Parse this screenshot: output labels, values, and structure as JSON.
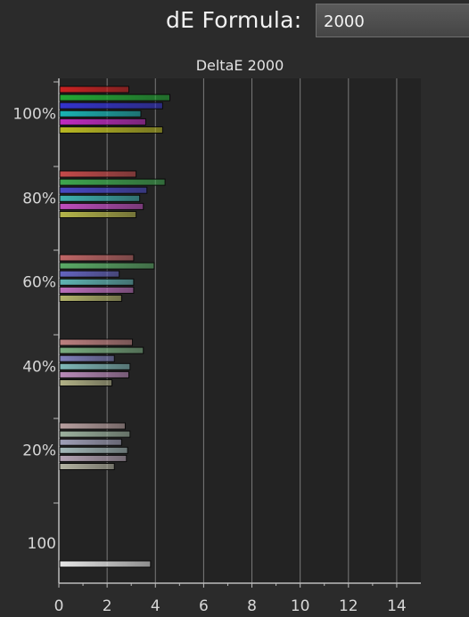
{
  "header": {
    "formula_label": "dE Formula:",
    "formula_value": "2000"
  },
  "colors": {
    "background": "#2b2b2b",
    "plot_background": "#232323",
    "grid": "#7a7a7a",
    "axis": "#bdbdbd"
  },
  "chart_data": {
    "type": "bar",
    "orientation": "horizontal",
    "title": "DeltaE 2000",
    "xlabel": "",
    "ylabel": "",
    "xlim": [
      0,
      15
    ],
    "x_ticks": [
      0,
      2,
      4,
      6,
      8,
      10,
      12,
      14
    ],
    "grid": true,
    "groups": [
      {
        "label": "100%",
        "bars": [
          {
            "name": "red",
            "value": 2.9,
            "color": "#cc2222"
          },
          {
            "name": "green",
            "value": 4.6,
            "color": "#22a833"
          },
          {
            "name": "blue",
            "value": 4.3,
            "color": "#3333cc"
          },
          {
            "name": "cyan",
            "value": 3.4,
            "color": "#19b3b3"
          },
          {
            "name": "magenta",
            "value": 3.6,
            "color": "#c02ac0"
          },
          {
            "name": "yellow",
            "value": 4.3,
            "color": "#b8b822"
          }
        ]
      },
      {
        "label": "80%",
        "bars": [
          {
            "name": "red",
            "value": 3.2,
            "color": "#c44a4a"
          },
          {
            "name": "green",
            "value": 4.4,
            "color": "#3ea64e"
          },
          {
            "name": "blue",
            "value": 3.65,
            "color": "#4848c4"
          },
          {
            "name": "cyan",
            "value": 3.35,
            "color": "#3db0b0"
          },
          {
            "name": "magenta",
            "value": 3.5,
            "color": "#bd4dbd"
          },
          {
            "name": "yellow",
            "value": 3.2,
            "color": "#b5b54a"
          }
        ]
      },
      {
        "label": "60%",
        "bars": [
          {
            "name": "red",
            "value": 3.1,
            "color": "#c06666"
          },
          {
            "name": "green",
            "value": 3.95,
            "color": "#5aaa66"
          },
          {
            "name": "blue",
            "value": 2.5,
            "color": "#6464c0"
          },
          {
            "name": "cyan",
            "value": 3.1,
            "color": "#5fb4b4"
          },
          {
            "name": "magenta",
            "value": 3.1,
            "color": "#bb6ebb"
          },
          {
            "name": "yellow",
            "value": 2.6,
            "color": "#b3b36a"
          }
        ]
      },
      {
        "label": "40%",
        "bars": [
          {
            "name": "red",
            "value": 3.05,
            "color": "#bd8080"
          },
          {
            "name": "green",
            "value": 3.5,
            "color": "#79ad80"
          },
          {
            "name": "blue",
            "value": 2.3,
            "color": "#8080bd"
          },
          {
            "name": "cyan",
            "value": 2.95,
            "color": "#80b8b8"
          },
          {
            "name": "magenta",
            "value": 2.9,
            "color": "#b98ab9"
          },
          {
            "name": "yellow",
            "value": 2.2,
            "color": "#b3b387"
          }
        ]
      },
      {
        "label": "20%",
        "bars": [
          {
            "name": "red",
            "value": 2.75,
            "color": "#b8a0a0"
          },
          {
            "name": "green",
            "value": 2.95,
            "color": "#9cb29f"
          },
          {
            "name": "blue",
            "value": 2.6,
            "color": "#a0a0b8"
          },
          {
            "name": "cyan",
            "value": 2.85,
            "color": "#a3b8b8"
          },
          {
            "name": "magenta",
            "value": 2.8,
            "color": "#b5a4b5"
          },
          {
            "name": "yellow",
            "value": 2.3,
            "color": "#b4b4a2"
          }
        ]
      },
      {
        "label": "100",
        "bars": [
          {
            "name": "white",
            "value": 3.8,
            "color": "#e6e6e6"
          }
        ]
      }
    ]
  }
}
